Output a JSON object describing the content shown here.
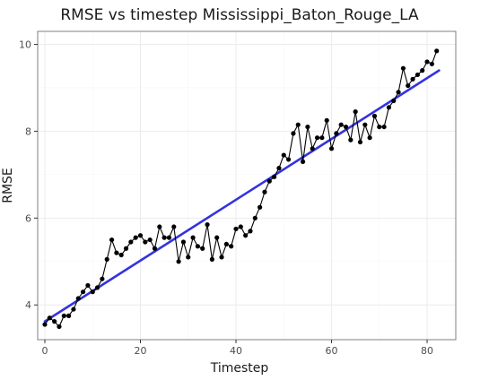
{
  "chart_data": {
    "type": "line",
    "title": "RMSE vs timestep Mississippi_Baton_Rouge_LA",
    "xlabel": "Timestep",
    "ylabel": "RMSE",
    "xlim": [
      -1.5,
      86
    ],
    "ylim": [
      3.2,
      10.3
    ],
    "x_ticks": [
      0,
      20,
      40,
      60,
      80
    ],
    "y_ticks": [
      4,
      6,
      8,
      10
    ],
    "grid": true,
    "legend": "none",
    "series": [
      {
        "style": "line+points",
        "color": "#000000",
        "x": [
          0,
          1,
          2,
          3,
          4,
          5,
          6,
          7,
          8,
          9,
          10,
          11,
          12,
          13,
          14,
          15,
          16,
          17,
          18,
          19,
          20,
          21,
          22,
          23,
          24,
          25,
          26,
          27,
          28,
          29,
          30,
          31,
          32,
          33,
          34,
          35,
          36,
          37,
          38,
          39,
          40,
          41,
          42,
          43,
          44,
          45,
          46,
          47,
          48,
          49,
          50,
          51,
          52,
          53,
          54,
          55,
          56,
          57,
          58,
          59,
          60,
          61,
          62,
          63,
          64,
          65,
          66,
          67,
          68,
          69,
          70,
          71,
          72,
          73,
          74,
          75,
          76,
          77,
          78,
          79,
          80,
          81,
          82
        ],
        "y": [
          3.55,
          3.7,
          3.62,
          3.5,
          3.75,
          3.75,
          3.9,
          4.15,
          4.3,
          4.45,
          4.3,
          4.4,
          4.6,
          5.05,
          5.5,
          5.2,
          5.15,
          5.3,
          5.45,
          5.55,
          5.6,
          5.45,
          5.5,
          5.3,
          5.8,
          5.55,
          5.55,
          5.8,
          5.0,
          5.45,
          5.1,
          5.55,
          5.35,
          5.3,
          5.85,
          5.05,
          5.55,
          5.1,
          5.4,
          5.35,
          5.75,
          5.8,
          5.6,
          5.7,
          6.0,
          6.25,
          6.6,
          6.85,
          6.95,
          7.15,
          7.45,
          7.35,
          7.95,
          8.15,
          7.3,
          8.1,
          7.6,
          7.85,
          7.85,
          8.25,
          7.6,
          7.95,
          8.15,
          8.1,
          7.8,
          8.45,
          7.75,
          8.15,
          7.85,
          8.35,
          8.1,
          8.1,
          8.55,
          8.7,
          8.9,
          9.45,
          9.05,
          9.2,
          9.3,
          9.4,
          9.6,
          9.55,
          9.85
        ]
      },
      {
        "style": "trend",
        "color": "#3333e0",
        "x": [
          0,
          82.5
        ],
        "y": [
          3.62,
          9.4
        ]
      }
    ]
  }
}
